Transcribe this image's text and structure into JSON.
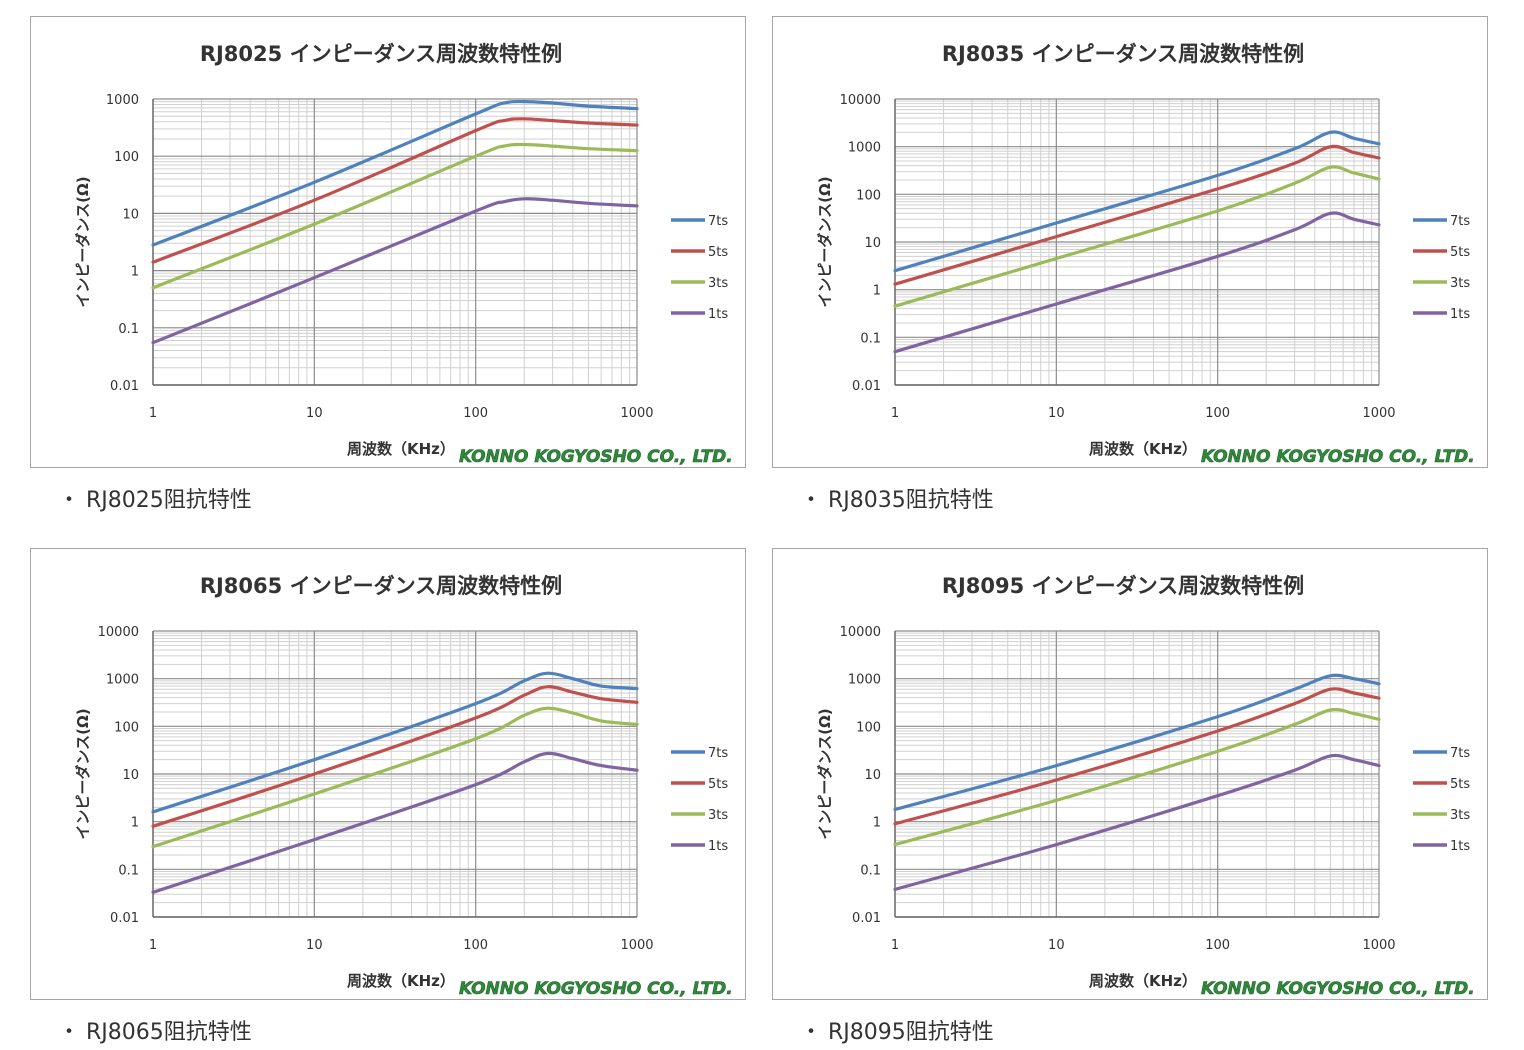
{
  "colors": {
    "7ts": "#4f81bd",
    "5ts": "#c0504d",
    "3ts": "#9bbb59",
    "1ts": "#8064a2",
    "watermark": "#2e8b3a"
  },
  "ylabel": "インピーダンス(Ω)",
  "xlabel": "周波数（KHz）",
  "watermark": "KONNO KOGYOSHO CO., LTD.",
  "captions": [
    "RJ8025阻抗特性",
    "RJ8035阻抗特性",
    "RJ8065阻抗特性",
    "RJ8095阻抗特性"
  ],
  "chart_data": [
    {
      "type": "line",
      "title": "RJ8025 インピーダンス周波数特性例",
      "xlabel": "周波数（KHz）",
      "ylabel": "インピーダンス(Ω)",
      "xscale": "log",
      "yscale": "log",
      "xlim": [
        1,
        1000
      ],
      "ylim": [
        0.01,
        1000
      ],
      "xticks": [
        "1",
        "10",
        "100",
        "1000"
      ],
      "yticks": [
        "0.01",
        "0.1",
        "1",
        "10",
        "100",
        "1000"
      ],
      "grid": true,
      "legend": "right",
      "series": [
        {
          "name": "7ts",
          "x": [
            1,
            10,
            100,
            150,
            200,
            300,
            500,
            1000
          ],
          "y": [
            2.8,
            35,
            550,
            850,
            900,
            850,
            750,
            680
          ]
        },
        {
          "name": "5ts",
          "x": [
            1,
            10,
            100,
            150,
            200,
            300,
            500,
            1000
          ],
          "y": [
            1.4,
            17,
            280,
            420,
            450,
            420,
            380,
            350
          ]
        },
        {
          "name": "3ts",
          "x": [
            1,
            10,
            100,
            150,
            200,
            300,
            500,
            1000
          ],
          "y": [
            0.5,
            6.5,
            100,
            150,
            160,
            150,
            135,
            125
          ]
        },
        {
          "name": "1ts",
          "x": [
            1,
            10,
            100,
            150,
            200,
            300,
            500,
            1000
          ],
          "y": [
            0.055,
            0.75,
            11,
            16,
            18,
            17,
            15,
            13.5
          ]
        }
      ]
    },
    {
      "type": "line",
      "title": "RJ8035 インピーダンス周波数特性例",
      "xlabel": "周波数（KHz）",
      "ylabel": "インピーダンス(Ω)",
      "xscale": "log",
      "yscale": "log",
      "xlim": [
        1,
        1000
      ],
      "ylim": [
        0.01,
        10000
      ],
      "xticks": [
        "1",
        "10",
        "100",
        "1000"
      ],
      "yticks": [
        "0.01",
        "0.1",
        "1",
        "10",
        "100",
        "1000",
        "10000"
      ],
      "grid": true,
      "legend": "right",
      "series": [
        {
          "name": "7ts",
          "x": [
            1,
            10,
            100,
            300,
            500,
            700,
            1000
          ],
          "y": [
            2.5,
            25,
            250,
            900,
            2000,
            1500,
            1150
          ]
        },
        {
          "name": "5ts",
          "x": [
            1,
            10,
            100,
            300,
            500,
            700,
            1000
          ],
          "y": [
            1.3,
            13,
            130,
            450,
            1000,
            750,
            580
          ]
        },
        {
          "name": "3ts",
          "x": [
            1,
            10,
            100,
            300,
            500,
            700,
            1000
          ],
          "y": [
            0.45,
            4.5,
            45,
            170,
            370,
            280,
            210
          ]
        },
        {
          "name": "1ts",
          "x": [
            1,
            10,
            100,
            300,
            500,
            700,
            1000
          ],
          "y": [
            0.05,
            0.5,
            5,
            18,
            40,
            30,
            23
          ]
        }
      ]
    },
    {
      "type": "line",
      "title": "RJ8065 インピーダンス周波数特性例",
      "xlabel": "周波数（KHz）",
      "ylabel": "インピーダンス(Ω)",
      "xscale": "log",
      "yscale": "log",
      "xlim": [
        1,
        1000
      ],
      "ylim": [
        0.01,
        10000
      ],
      "xticks": [
        "1",
        "10",
        "100",
        "1000"
      ],
      "yticks": [
        "0.01",
        "0.1",
        "1",
        "10",
        "100",
        "1000",
        "10000"
      ],
      "grid": true,
      "legend": "right",
      "series": [
        {
          "name": "7ts",
          "x": [
            1,
            10,
            100,
            200,
            280,
            400,
            600,
            1000
          ],
          "y": [
            1.6,
            20,
            300,
            900,
            1300,
            1000,
            700,
            620
          ]
        },
        {
          "name": "5ts",
          "x": [
            1,
            10,
            100,
            200,
            280,
            400,
            600,
            1000
          ],
          "y": [
            0.8,
            10,
            150,
            450,
            680,
            520,
            380,
            320
          ]
        },
        {
          "name": "3ts",
          "x": [
            1,
            10,
            100,
            200,
            280,
            400,
            600,
            1000
          ],
          "y": [
            0.3,
            3.8,
            55,
            170,
            240,
            190,
            130,
            110
          ]
        },
        {
          "name": "1ts",
          "x": [
            1,
            10,
            100,
            200,
            280,
            400,
            600,
            1000
          ],
          "y": [
            0.033,
            0.42,
            6,
            18,
            27,
            21,
            15,
            12
          ]
        }
      ]
    },
    {
      "type": "line",
      "title": "RJ8095 インピーダンス周波数特性例",
      "xlabel": "周波数（KHz）",
      "ylabel": "インピーダンス(Ω)",
      "xscale": "log",
      "yscale": "log",
      "xlim": [
        1,
        1000
      ],
      "ylim": [
        0.01,
        10000
      ],
      "xticks": [
        "1",
        "10",
        "100",
        "1000"
      ],
      "yticks": [
        "0.01",
        "0.1",
        "1",
        "10",
        "100",
        "1000",
        "10000"
      ],
      "grid": true,
      "legend": "right",
      "series": [
        {
          "name": "7ts",
          "x": [
            1,
            10,
            100,
            300,
            500,
            700,
            1000
          ],
          "y": [
            1.8,
            15,
            160,
            600,
            1150,
            1000,
            780
          ]
        },
        {
          "name": "5ts",
          "x": [
            1,
            10,
            100,
            300,
            500,
            700,
            1000
          ],
          "y": [
            0.9,
            7.5,
            80,
            300,
            600,
            500,
            390
          ]
        },
        {
          "name": "3ts",
          "x": [
            1,
            10,
            100,
            300,
            500,
            700,
            1000
          ],
          "y": [
            0.33,
            2.8,
            30,
            110,
            220,
            185,
            140
          ]
        },
        {
          "name": "1ts",
          "x": [
            1,
            10,
            100,
            300,
            500,
            700,
            1000
          ],
          "y": [
            0.038,
            0.33,
            3.5,
            12,
            24,
            20,
            15
          ]
        }
      ]
    }
  ]
}
